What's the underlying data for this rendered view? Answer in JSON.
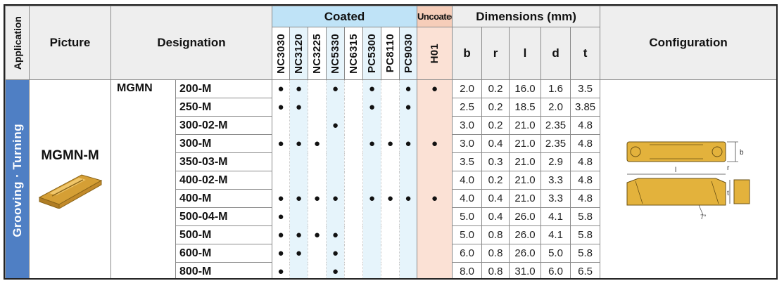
{
  "headers": {
    "application": "Application",
    "picture": "Picture",
    "designation": "Designation",
    "coated": "Coated",
    "uncoated": "Uncoated",
    "dimensions": "Dimensions (mm)",
    "configuration": "Configuration",
    "coated_grades": [
      "NC3030",
      "NC3120",
      "NC3225",
      "NC5330",
      "NC6315",
      "PC5300",
      "PC8110",
      "PC9030"
    ],
    "uncoated_grades": [
      "H01"
    ],
    "dims": [
      "b",
      "r",
      "l",
      "d",
      "t"
    ]
  },
  "application_label": "Grooving · Turning",
  "picture_label": "MGMN-M",
  "series": "MGMN",
  "dot_symbol": "●",
  "rows": [
    {
      "code": "200-M",
      "coated": [
        1,
        1,
        0,
        1,
        0,
        1,
        0,
        1
      ],
      "uncoated": [
        1
      ],
      "dims": [
        "2.0",
        "0.2",
        "16.0",
        "1.6",
        "3.5"
      ]
    },
    {
      "code": "250-M",
      "coated": [
        1,
        1,
        0,
        0,
        0,
        1,
        0,
        1
      ],
      "uncoated": [
        0
      ],
      "dims": [
        "2.5",
        "0.2",
        "18.5",
        "2.0",
        "3.85"
      ]
    },
    {
      "code": "300-02-M",
      "coated": [
        0,
        0,
        0,
        1,
        0,
        0,
        0,
        0
      ],
      "uncoated": [
        0
      ],
      "dims": [
        "3.0",
        "0.2",
        "21.0",
        "2.35",
        "4.8"
      ]
    },
    {
      "code": "300-M",
      "coated": [
        1,
        1,
        1,
        0,
        0,
        1,
        1,
        1
      ],
      "uncoated": [
        1
      ],
      "dims": [
        "3.0",
        "0.4",
        "21.0",
        "2.35",
        "4.8"
      ]
    },
    {
      "code": "350-03-M",
      "coated": [
        0,
        0,
        0,
        0,
        0,
        0,
        0,
        0
      ],
      "uncoated": [
        0
      ],
      "dims": [
        "3.5",
        "0.3",
        "21.0",
        "2.9",
        "4.8"
      ]
    },
    {
      "code": "400-02-M",
      "coated": [
        0,
        0,
        0,
        0,
        0,
        0,
        0,
        0
      ],
      "uncoated": [
        0
      ],
      "dims": [
        "4.0",
        "0.2",
        "21.0",
        "3.3",
        "4.8"
      ]
    },
    {
      "code": "400-M",
      "coated": [
        1,
        1,
        1,
        1,
        0,
        1,
        1,
        1
      ],
      "uncoated": [
        1
      ],
      "dims": [
        "4.0",
        "0.4",
        "21.0",
        "3.3",
        "4.8"
      ]
    },
    {
      "code": "500-04-M",
      "coated": [
        1,
        0,
        0,
        0,
        0,
        0,
        0,
        0
      ],
      "uncoated": [
        0
      ],
      "dims": [
        "5.0",
        "0.4",
        "26.0",
        "4.1",
        "5.8"
      ]
    },
    {
      "code": "500-M",
      "coated": [
        1,
        1,
        1,
        1,
        0,
        0,
        0,
        0
      ],
      "uncoated": [
        0
      ],
      "dims": [
        "5.0",
        "0.8",
        "26.0",
        "4.1",
        "5.8"
      ]
    },
    {
      "code": "600-M",
      "coated": [
        1,
        1,
        0,
        1,
        0,
        0,
        0,
        0
      ],
      "uncoated": [
        0
      ],
      "dims": [
        "6.0",
        "0.8",
        "26.0",
        "5.0",
        "5.8"
      ]
    },
    {
      "code": "800-M",
      "coated": [
        1,
        0,
        0,
        1,
        0,
        0,
        0,
        0
      ],
      "uncoated": [
        0
      ],
      "dims": [
        "8.0",
        "0.8",
        "31.0",
        "6.0",
        "6.5"
      ]
    }
  ],
  "config_labels": {
    "b": "b",
    "r": "r",
    "l": "l",
    "t": "t",
    "angle": "7°"
  },
  "colors": {
    "application_band": "#4f7fc4",
    "coated_header": "#bfe3f7",
    "coated_stripe": "#e6f4fb",
    "uncoated_header": "#f6cdb9",
    "uncoated_column": "#fbe1d5",
    "insert_gold": "#e3b23c"
  }
}
